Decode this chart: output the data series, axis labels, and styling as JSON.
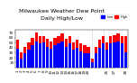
{
  "title": "Milwaukee Weather Dew Point",
  "subtitle": "Daily High/Low",
  "background_color": "#ffffff",
  "high_color": "#ff0000",
  "low_color": "#0000ff",
  "ylim": [
    0,
    75
  ],
  "yticks": [
    10,
    20,
    30,
    40,
    50,
    60,
    70
  ],
  "highs": [
    55,
    30,
    42,
    50,
    60,
    70,
    62,
    63,
    58,
    52,
    60,
    62,
    68,
    58,
    62,
    50,
    55,
    48,
    45,
    42,
    18,
    42,
    55,
    62,
    50,
    62,
    65,
    68,
    62,
    62
  ],
  "lows": [
    38,
    18,
    28,
    35,
    45,
    52,
    48,
    50,
    42,
    38,
    45,
    48,
    52,
    42,
    48,
    35,
    40,
    32,
    28,
    28,
    10,
    28,
    40,
    48,
    36,
    48,
    50,
    52,
    48,
    30
  ],
  "xlabels": [
    "1",
    "2",
    "3",
    "4",
    "5",
    "6",
    "7",
    "8",
    "9",
    "10",
    "11",
    "12",
    "13",
    "14",
    "15",
    "16",
    "17",
    "18",
    "19",
    "20",
    "",
    "",
    "",
    "",
    "25",
    "",
    "27",
    "",
    "",
    "30"
  ],
  "dotted_vlines": [
    20,
    23
  ],
  "title_fontsize": 4.5,
  "tick_fontsize": 3.0,
  "bar_width": 0.8
}
